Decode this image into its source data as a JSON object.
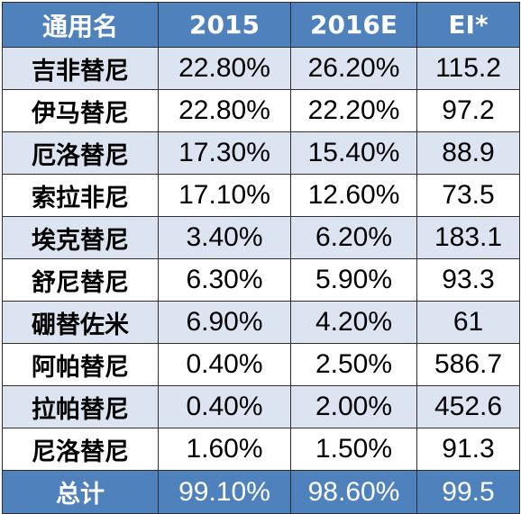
{
  "header": {
    "col_name": "通用名",
    "col_2015": "2015",
    "col_2016": "2016E",
    "col_ei": "EI*"
  },
  "rows": [
    {
      "name": "吉非替尼",
      "y2015": "22.80%",
      "y2016": "26.20%",
      "ei": "115.2"
    },
    {
      "name": "伊马替尼",
      "y2015": "22.80%",
      "y2016": "22.20%",
      "ei": "97.2"
    },
    {
      "name": "厄洛替尼",
      "y2015": "17.30%",
      "y2016": "15.40%",
      "ei": "88.9"
    },
    {
      "name": "索拉非尼",
      "y2015": "17.10%",
      "y2016": "12.60%",
      "ei": "73.5"
    },
    {
      "name": "埃克替尼",
      "y2015": "3.40%",
      "y2016": "6.20%",
      "ei": "183.1"
    },
    {
      "name": "舒尼替尼",
      "y2015": "6.30%",
      "y2016": "5.90%",
      "ei": "93.3"
    },
    {
      "name": "硼替佐米",
      "y2015": "6.90%",
      "y2016": "4.20%",
      "ei": "61"
    },
    {
      "name": "阿帕替尼",
      "y2015": "0.40%",
      "y2016": "2.50%",
      "ei": "586.7"
    },
    {
      "name": "拉帕替尼",
      "y2015": "0.40%",
      "y2016": "2.00%",
      "ei": "452.6"
    },
    {
      "name": "尼洛替尼",
      "y2015": "1.60%",
      "y2016": "1.50%",
      "ei": "91.3"
    }
  ],
  "total": {
    "name": "总计",
    "y2015": "99.10%",
    "y2016": "98.60%",
    "ei": "99.5"
  },
  "colors": {
    "header_bg": "#4f81bd",
    "header_text": "#ffffff",
    "band_row": "#dce4f2",
    "plain_row": "#ffffff",
    "border": "#2f2f2f"
  }
}
